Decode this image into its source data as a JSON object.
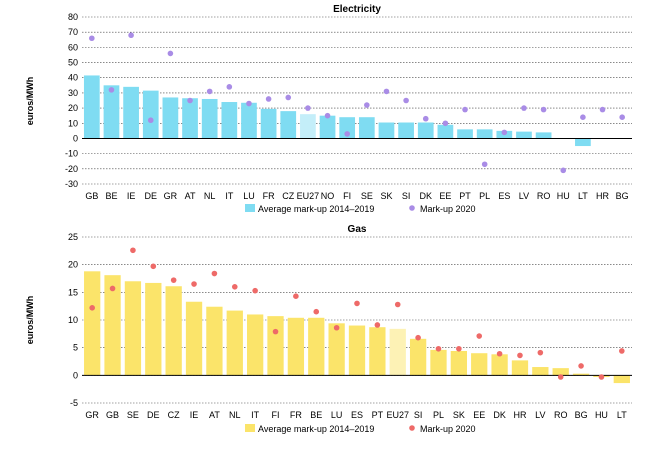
{
  "chart_data": [
    {
      "type": "bar",
      "title": "Electricity",
      "ylabel": "euros/MWh",
      "xlabel": "",
      "ylim": [
        -30,
        80
      ],
      "yticks": [
        -30,
        -20,
        -10,
        0,
        10,
        20,
        30,
        40,
        50,
        60,
        70,
        80
      ],
      "grid": true,
      "legend_position": "bottom",
      "categories": [
        "GB",
        "BE",
        "IE",
        "DE",
        "GR",
        "AT",
        "NL",
        "IT",
        "LU",
        "FR",
        "CZ",
        "EU27",
        "NO",
        "FI",
        "SE",
        "SK",
        "SI",
        "DK",
        "EE",
        "PT",
        "PL",
        "ES",
        "LV",
        "RO",
        "HU",
        "LT",
        "HR",
        "BG"
      ],
      "highlight_category": "EU27",
      "series": [
        {
          "name": "Average mark-up 2014–2019",
          "kind": "bar",
          "color": "#7fdcf2",
          "highlight_color": "#c4eef9",
          "values": [
            41.5,
            35,
            34,
            31.5,
            27,
            26.5,
            26,
            24,
            23.5,
            19.5,
            18,
            16,
            15,
            14,
            14,
            10.5,
            10.5,
            10.5,
            9,
            6,
            6,
            5,
            4.5,
            4,
            0,
            -5,
            0,
            0
          ]
        },
        {
          "name": "Mark-up 2020",
          "kind": "dot",
          "color": "#a98ce6",
          "values": [
            66,
            32,
            68,
            12,
            56,
            25,
            31,
            34,
            23,
            26,
            27,
            20,
            15,
            3,
            22,
            31,
            25,
            13,
            10,
            19,
            -17,
            4,
            20,
            19,
            -21,
            14,
            19,
            14
          ]
        }
      ]
    },
    {
      "type": "bar",
      "title": "Gas",
      "ylabel": "euros/MWh",
      "xlabel": "",
      "ylim": [
        -5,
        25
      ],
      "yticks": [
        -5,
        0,
        5,
        10,
        15,
        20,
        25
      ],
      "grid": true,
      "legend_position": "bottom",
      "categories": [
        "GR",
        "GB",
        "SE",
        "DE",
        "CZ",
        "IE",
        "AT",
        "NL",
        "IT",
        "FI",
        "FR",
        "BE",
        "LU",
        "ES",
        "PT",
        "EU27",
        "SI",
        "PL",
        "SK",
        "EE",
        "DK",
        "HR",
        "LV",
        "RO",
        "BG",
        "HU",
        "LT"
      ],
      "highlight_category": "EU27",
      "series": [
        {
          "name": "Average mark-up 2014–2019",
          "kind": "bar",
          "color": "#fbe46a",
          "highlight_color": "#fdf2b5",
          "values": [
            18.8,
            18.1,
            17,
            16.7,
            16.1,
            13.3,
            12.4,
            11.7,
            11,
            10.7,
            10.4,
            10.4,
            9.4,
            9,
            8.7,
            8.4,
            6.6,
            4.6,
            4.4,
            4,
            3.8,
            2.7,
            1.5,
            1.3,
            0.3,
            -0.3,
            -1.4
          ]
        },
        {
          "name": "Mark-up 2020",
          "kind": "dot",
          "color": "#ee6a68",
          "values": [
            12.2,
            15.7,
            22.6,
            19.7,
            17.2,
            16.5,
            18.4,
            16,
            15.3,
            7.9,
            14.3,
            11.5,
            8.6,
            13,
            9.1,
            12.8,
            6.8,
            4.8,
            4.8,
            7.1,
            3.9,
            3.6,
            4.1,
            -0.3,
            1.7,
            -0.3,
            4.4
          ]
        }
      ]
    }
  ]
}
